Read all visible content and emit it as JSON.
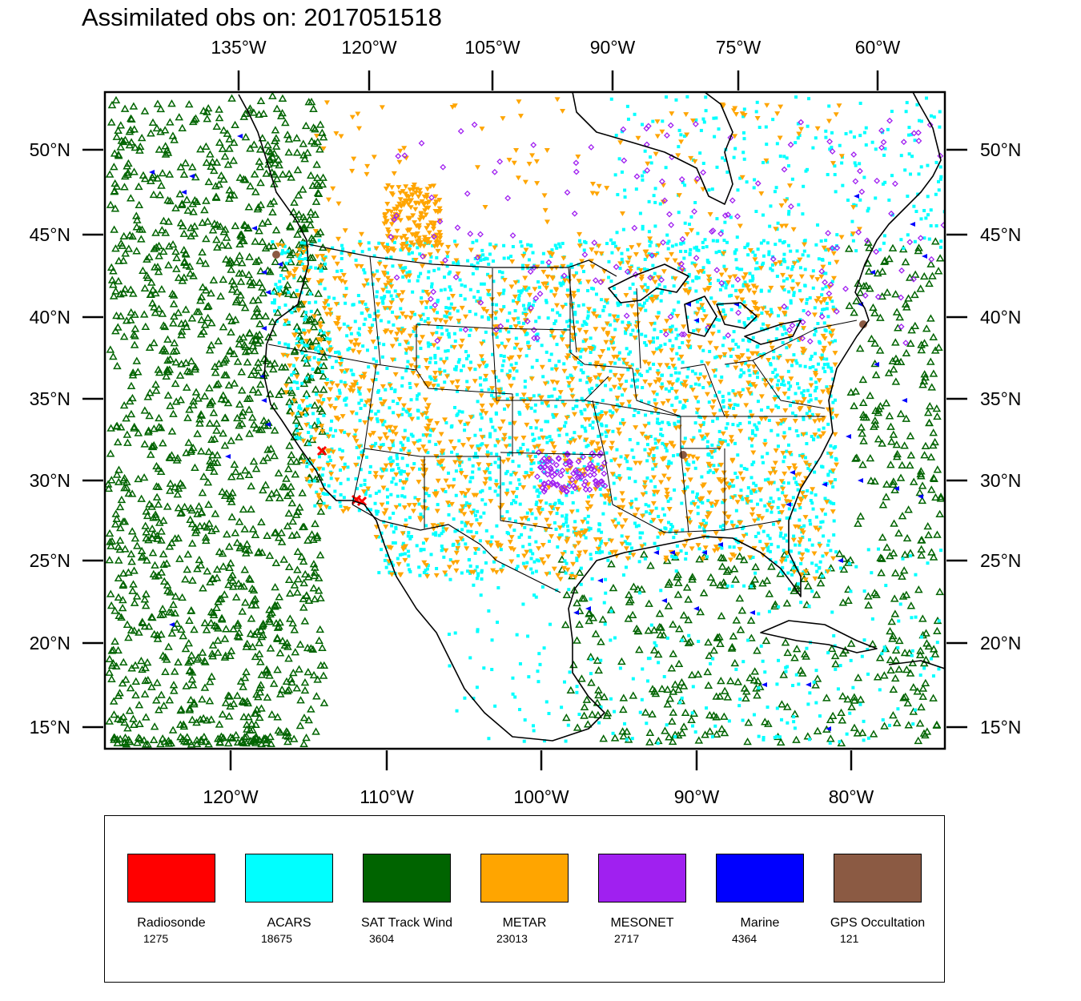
{
  "title": "Assimilated obs on: 2017051518",
  "map": {
    "top_axis_labels": [
      "135°W",
      "120°W",
      "105°W",
      "90°W",
      "75°W",
      "60°W"
    ],
    "bottom_axis_labels": [
      "120°W",
      "110°W",
      "100°W",
      "90°W",
      "80°W"
    ],
    "left_axis_labels": [
      "50°N",
      "45°N",
      "40°N",
      "35°N",
      "30°N",
      "25°N",
      "20°N",
      "15°N"
    ],
    "right_axis_labels": [
      "50°N",
      "45°N",
      "40°N",
      "35°N",
      "30°N",
      "25°N",
      "20°N",
      "15°N"
    ],
    "background": "white",
    "coastline_color": "#000000"
  },
  "observation_types": [
    {
      "name": "Radiosonde",
      "count": "1275",
      "color": "#ff0000",
      "marker": "x-cross"
    },
    {
      "name": "ACARS",
      "count": "18675",
      "color": "#00ffff",
      "marker": "square-dot"
    },
    {
      "name": "SAT Track Wind",
      "count": "3604",
      "color": "#006400",
      "marker": "triangle-open"
    },
    {
      "name": "METAR",
      "count": "23013",
      "color": "#ffa500",
      "marker": "triangle-down"
    },
    {
      "name": "MESONET",
      "count": "2717",
      "color": "#a020f0",
      "marker": "diamond-open"
    },
    {
      "name": "Marine",
      "count": "4364",
      "color": "#0000ff",
      "marker": "triangle-left"
    },
    {
      "name": "GPS Occultation",
      "count": "121",
      "color": "#8b5a43",
      "marker": "circle"
    }
  ]
}
